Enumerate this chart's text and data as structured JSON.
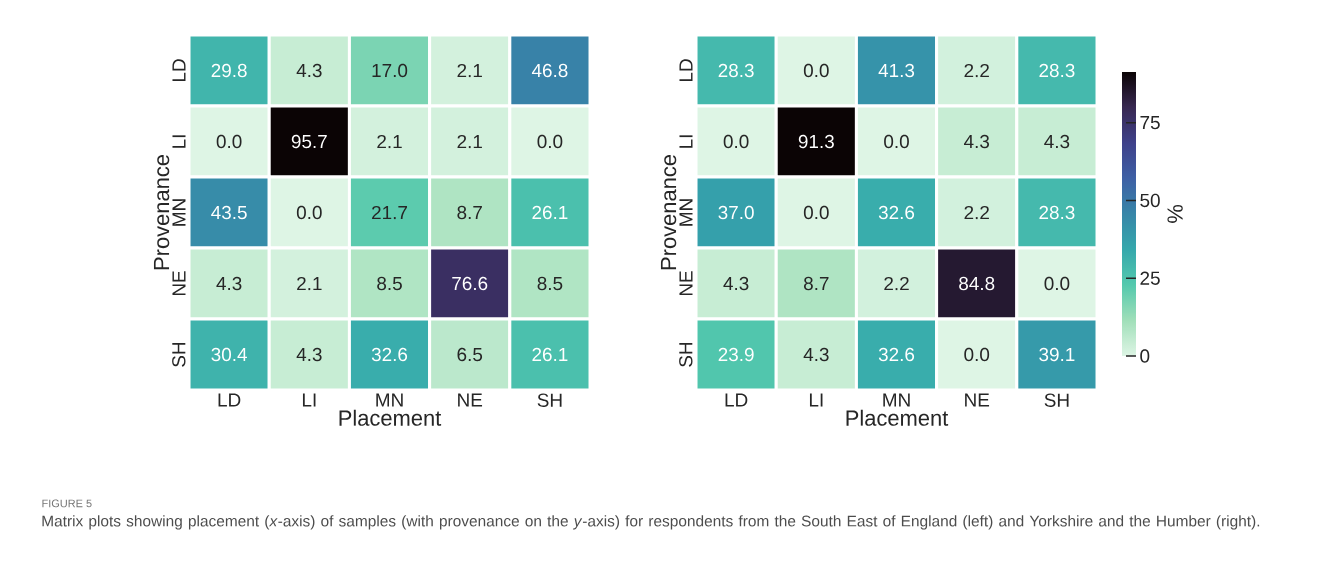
{
  "chart_data": [
    {
      "type": "heatmap",
      "xlabel": "Placement",
      "ylabel": "Provenance",
      "data_labels": true,
      "categories": [
        "LD",
        "LI",
        "MN",
        "NE",
        "SH"
      ],
      "y_categories": [
        "LD",
        "LI",
        "MN",
        "NE",
        "SH"
      ],
      "cells": [
        [
          29.8,
          4.3,
          17.0,
          2.1,
          46.8
        ],
        [
          0.0,
          95.7,
          2.1,
          2.1,
          0.0
        ],
        [
          43.5,
          0.0,
          21.7,
          8.7,
          26.1
        ],
        [
          4.3,
          2.1,
          8.5,
          76.6,
          8.5
        ],
        [
          30.4,
          4.3,
          32.6,
          6.5,
          26.1
        ]
      ],
      "cell_labels": [
        [
          "29.8",
          "4.3",
          "17.0",
          "2.1",
          "46.8"
        ],
        [
          "0.0",
          "95.7",
          "2.1",
          "2.1",
          "0.0"
        ],
        [
          "43.5",
          "0.0",
          "21.7",
          "8.7",
          "26.1"
        ],
        [
          "4.3",
          "2.1",
          "8.5",
          "76.6",
          "8.5"
        ],
        [
          "30.4",
          "4.3",
          "32.6",
          "6.5",
          "26.1"
        ]
      ],
      "annotations": [
        "FIGURE 5",
        "Matrix plots showing placement (*x*-axis) of samples (with provenance on the *y*-axis) for respondents from the South East of England (left) and Yorkshire and the Humber (right)."
      ]
    },
    {
      "type": "heatmap",
      "xlabel": "Placement",
      "ylabel": "Provenance",
      "data_labels": true,
      "categories": [
        "LD",
        "LI",
        "MN",
        "NE",
        "SH"
      ],
      "y_categories": [
        "LD",
        "LI",
        "MN",
        "NE",
        "SH"
      ],
      "cells": [
        [
          28.3,
          0.0,
          41.3,
          2.2,
          28.3
        ],
        [
          0.0,
          91.3,
          0.0,
          4.3,
          4.3
        ],
        [
          37.0,
          0.0,
          32.6,
          2.2,
          28.3
        ],
        [
          4.3,
          8.7,
          2.2,
          84.8,
          0.0
        ],
        [
          23.9,
          4.3,
          32.6,
          0.0,
          39.1
        ]
      ],
      "cell_labels": [
        [
          "28.3",
          "0.0",
          "41.3",
          "2.2",
          "28.3"
        ],
        [
          "0.0",
          "91.3",
          "0.0",
          "4.3",
          "4.3"
        ],
        [
          "37.0",
          "0.0",
          "32.6",
          "2.2",
          "28.3"
        ],
        [
          "4.3",
          "8.7",
          "2.2",
          "84.8",
          "0.0"
        ],
        [
          "23.9",
          "4.3",
          "32.6",
          "0.0",
          "39.1"
        ]
      ],
      "clim": [
        0,
        91.3
      ],
      "cticks": [
        0,
        25,
        50,
        75
      ],
      "clabel": "%"
    }
  ]
}
